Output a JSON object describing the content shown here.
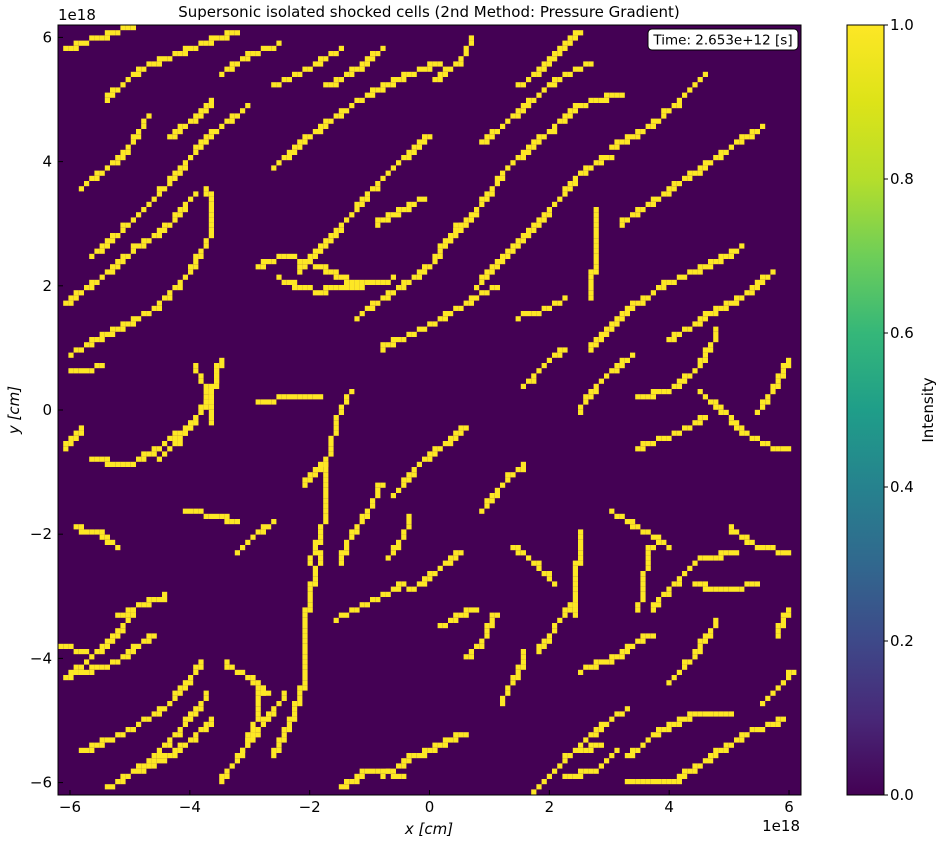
{
  "chart_data": {
    "type": "heatmap",
    "title": "Supersonic isolated shocked cells (2nd Method: Pressure Gradient)",
    "xlabel": "x [cm]",
    "ylabel": "y [cm]",
    "x_scale_label": "1e18",
    "y_scale_label": "1e18",
    "xlim": [
      -6.2,
      6.2
    ],
    "ylim": [
      -6.2,
      6.2
    ],
    "xticks": [
      -6,
      -4,
      -2,
      0,
      2,
      4,
      6
    ],
    "yticks": [
      -6,
      -4,
      -2,
      0,
      2,
      4,
      6
    ],
    "xtick_labels": [
      "−6",
      "−4",
      "−2",
      "0",
      "2",
      "4",
      "6"
    ],
    "ytick_labels": [
      "−6",
      "−4",
      "−2",
      "0",
      "2",
      "4",
      "6"
    ],
    "annotation": "Time: 2.653e+12 [s]",
    "annotation_placement": "top-right",
    "colorbar": {
      "label": "Intensity",
      "range": [
        0.0,
        1.0
      ],
      "ticks": [
        0.0,
        0.2,
        0.4,
        0.6,
        0.8,
        1.0
      ],
      "tick_labels": [
        "0.0",
        "0.2",
        "0.4",
        "0.6",
        "0.8",
        "1.0"
      ],
      "colormap": "viridis"
    },
    "grid": false,
    "values": [
      0,
      1
    ],
    "background_value": 0,
    "shock_value": 1,
    "shock_segments": [
      [
        [
          -6.1,
          -4.3
        ],
        [
          -5.3,
          -4.1
        ],
        [
          -4.6,
          -3.6
        ]
      ],
      [
        [
          -5.8,
          -5.5
        ],
        [
          -5.1,
          -5.2
        ],
        [
          -4.4,
          -4.8
        ],
        [
          -3.8,
          -4.1
        ]
      ],
      [
        [
          -5.4,
          -6.1
        ],
        [
          -4.7,
          -5.7
        ],
        [
          -4.2,
          -5.2
        ],
        [
          -3.7,
          -4.6
        ]
      ],
      [
        [
          -4.8,
          -5.8
        ],
        [
          -4.2,
          -5.5
        ],
        [
          -3.6,
          -5.0
        ]
      ],
      [
        [
          -3.5,
          -6.0
        ],
        [
          -2.9,
          -5.2
        ],
        [
          -2.4,
          -4.6
        ]
      ],
      [
        [
          -5.9,
          -4.2
        ],
        [
          -5.3,
          -3.7
        ],
        [
          -4.9,
          -3.2
        ]
      ],
      [
        [
          -5.2,
          -3.3
        ],
        [
          -4.7,
          -3.1
        ],
        [
          -4.4,
          -3.0
        ]
      ],
      [
        [
          -6.2,
          -3.8
        ],
        [
          -5.7,
          -3.9
        ]
      ],
      [
        [
          -6.0,
          0.9
        ],
        [
          -5.4,
          1.2
        ],
        [
          -4.6,
          1.6
        ],
        [
          -4.0,
          2.2
        ],
        [
          -3.6,
          2.9
        ],
        [
          -3.7,
          3.6
        ]
      ],
      [
        [
          -6.1,
          1.7
        ],
        [
          -5.5,
          2.1
        ],
        [
          -4.9,
          2.6
        ],
        [
          -4.3,
          3.0
        ],
        [
          -3.9,
          3.5
        ]
      ],
      [
        [
          -5.6,
          2.5
        ],
        [
          -4.9,
          3.1
        ],
        [
          -4.3,
          3.7
        ],
        [
          -3.7,
          4.4
        ],
        [
          -3.0,
          4.9
        ]
      ],
      [
        [
          -5.8,
          3.6
        ],
        [
          -5.1,
          4.1
        ],
        [
          -4.7,
          4.7
        ]
      ],
      [
        [
          -5.4,
          5.0
        ],
        [
          -4.8,
          5.5
        ],
        [
          -4.0,
          5.8
        ],
        [
          -3.2,
          6.1
        ]
      ],
      [
        [
          -6.1,
          5.8
        ],
        [
          -5.5,
          6.0
        ],
        [
          -4.9,
          6.2
        ]
      ],
      [
        [
          -2.6,
          3.9
        ],
        [
          -2.0,
          4.4
        ],
        [
          -1.3,
          4.9
        ],
        [
          -0.6,
          5.3
        ],
        [
          0.2,
          5.6
        ]
      ],
      [
        [
          -2.2,
          2.2
        ],
        [
          -1.6,
          2.8
        ],
        [
          -1.0,
          3.5
        ],
        [
          -0.5,
          4.0
        ],
        [
          0.0,
          4.4
        ]
      ],
      [
        [
          -2.9,
          2.3
        ],
        [
          -2.4,
          2.5
        ],
        [
          -1.8,
          2.3
        ],
        [
          -1.2,
          2.0
        ],
        [
          -0.6,
          2.1
        ]
      ],
      [
        [
          -2.5,
          2.1
        ],
        [
          -1.9,
          1.9
        ],
        [
          -1.3,
          2.0
        ]
      ],
      [
        [
          -1.2,
          1.5
        ],
        [
          -0.6,
          1.9
        ],
        [
          0.1,
          2.4
        ],
        [
          0.5,
          3.0
        ]
      ],
      [
        [
          -0.8,
          1.0
        ],
        [
          -0.1,
          1.3
        ],
        [
          0.6,
          1.7
        ],
        [
          1.1,
          2.0
        ]
      ],
      [
        [
          0.8,
          2.0
        ],
        [
          1.4,
          2.6
        ],
        [
          2.0,
          3.2
        ],
        [
          2.5,
          3.8
        ],
        [
          3.0,
          4.1
        ]
      ],
      [
        [
          0.2,
          2.6
        ],
        [
          0.8,
          3.2
        ],
        [
          1.3,
          3.9
        ],
        [
          1.9,
          4.4
        ],
        [
          2.5,
          4.9
        ],
        [
          3.2,
          5.1
        ]
      ],
      [
        [
          0.9,
          4.3
        ],
        [
          1.5,
          4.8
        ],
        [
          2.1,
          5.3
        ],
        [
          2.7,
          5.6
        ]
      ],
      [
        [
          0.1,
          5.3
        ],
        [
          0.6,
          5.7
        ],
        [
          0.7,
          6.0
        ]
      ],
      [
        [
          1.5,
          5.2
        ],
        [
          2.0,
          5.6
        ],
        [
          2.5,
          6.1
        ]
      ],
      [
        [
          3.0,
          4.2
        ],
        [
          3.6,
          4.5
        ],
        [
          4.1,
          4.9
        ],
        [
          4.6,
          5.4
        ]
      ],
      [
        [
          3.2,
          3.0
        ],
        [
          3.8,
          3.4
        ],
        [
          4.4,
          3.8
        ],
        [
          5.0,
          4.2
        ],
        [
          5.6,
          4.6
        ]
      ],
      [
        [
          2.7,
          1.0
        ],
        [
          3.3,
          1.6
        ],
        [
          3.9,
          2.0
        ],
        [
          4.6,
          2.3
        ],
        [
          5.2,
          2.6
        ]
      ],
      [
        [
          2.8,
          3.2
        ],
        [
          2.8,
          2.5
        ],
        [
          2.7,
          2.0
        ],
        [
          2.7,
          1.8
        ]
      ],
      [
        [
          4.0,
          1.1
        ],
        [
          4.6,
          1.5
        ],
        [
          5.2,
          1.8
        ],
        [
          5.7,
          2.2
        ]
      ],
      [
        [
          4.8,
          1.3
        ],
        [
          4.7,
          1.0
        ],
        [
          4.4,
          0.6
        ],
        [
          4.0,
          0.3
        ],
        [
          3.5,
          0.2
        ]
      ],
      [
        [
          4.5,
          0.3
        ],
        [
          4.9,
          0.0
        ],
        [
          5.3,
          -0.4
        ],
        [
          5.7,
          -0.6
        ],
        [
          6.0,
          -0.6
        ]
      ],
      [
        [
          2.5,
          0.0
        ],
        [
          2.9,
          0.5
        ],
        [
          3.4,
          0.9
        ]
      ],
      [
        [
          3.5,
          -0.6
        ],
        [
          4.1,
          -0.4
        ],
        [
          4.6,
          -0.1
        ]
      ],
      [
        [
          -5.6,
          -0.8
        ],
        [
          -5.0,
          -0.9
        ],
        [
          -4.5,
          -0.6
        ],
        [
          -3.9,
          -0.2
        ],
        [
          -3.6,
          0.4
        ],
        [
          -3.5,
          0.8
        ]
      ],
      [
        [
          -4.5,
          -0.8
        ],
        [
          -4.0,
          -0.3
        ],
        [
          -3.6,
          0.3
        ],
        [
          -3.5,
          0.7
        ]
      ],
      [
        [
          -3.9,
          0.7
        ],
        [
          -3.7,
          0.3
        ],
        [
          -3.6,
          -0.2
        ]
      ],
      [
        [
          -2.9,
          0.1
        ],
        [
          -2.4,
          0.2
        ],
        [
          -1.8,
          0.2
        ]
      ],
      [
        [
          -2.1,
          -1.2
        ],
        [
          -1.7,
          -0.8
        ],
        [
          -1.5,
          0.0
        ],
        [
          -1.3,
          0.3
        ]
      ],
      [
        [
          -2.0,
          -2.5
        ],
        [
          -1.8,
          -2.0
        ],
        [
          -1.7,
          -1.4
        ],
        [
          -1.7,
          -0.9
        ]
      ],
      [
        [
          -2.1,
          -4.3
        ],
        [
          -2.1,
          -3.6
        ],
        [
          -2.0,
          -3.0
        ],
        [
          -1.8,
          -2.3
        ]
      ],
      [
        [
          -1.5,
          -2.5
        ],
        [
          -1.3,
          -2.0
        ],
        [
          -1.0,
          -1.6
        ],
        [
          -0.8,
          -1.2
        ]
      ],
      [
        [
          -0.6,
          -1.4
        ],
        [
          -0.2,
          -0.9
        ],
        [
          0.2,
          -0.6
        ],
        [
          0.6,
          -0.3
        ]
      ],
      [
        [
          0.9,
          -1.6
        ],
        [
          1.3,
          -1.1
        ],
        [
          1.6,
          -0.9
        ]
      ],
      [
        [
          -1.6,
          -3.4
        ],
        [
          -1.0,
          -3.1
        ],
        [
          -0.4,
          -2.8
        ]
      ],
      [
        [
          -0.7,
          -2.4
        ],
        [
          -0.4,
          -2.0
        ],
        [
          -0.3,
          -1.7
        ]
      ],
      [
        [
          -0.3,
          -2.9
        ],
        [
          0.1,
          -2.6
        ],
        [
          0.5,
          -2.3
        ]
      ],
      [
        [
          1.8,
          -3.9
        ],
        [
          2.1,
          -3.5
        ],
        [
          2.4,
          -3.1
        ]
      ],
      [
        [
          2.4,
          -3.3
        ],
        [
          2.4,
          -2.8
        ],
        [
          2.5,
          -2.4
        ],
        [
          2.5,
          -2.0
        ]
      ],
      [
        [
          2.5,
          -4.2
        ],
        [
          3.1,
          -4.0
        ],
        [
          3.7,
          -3.6
        ]
      ],
      [
        [
          3.5,
          -3.2
        ],
        [
          3.6,
          -2.6
        ],
        [
          3.7,
          -2.2
        ]
      ],
      [
        [
          3.7,
          -3.2
        ],
        [
          4.1,
          -2.8
        ],
        [
          4.5,
          -2.4
        ],
        [
          5.1,
          -2.3
        ]
      ],
      [
        [
          4.4,
          -2.8
        ],
        [
          4.9,
          -2.9
        ],
        [
          5.5,
          -2.8
        ]
      ],
      [
        [
          5.0,
          -1.9
        ],
        [
          5.5,
          -2.2
        ],
        [
          6.0,
          -2.3
        ]
      ],
      [
        [
          3.0,
          -1.6
        ],
        [
          3.5,
          -1.9
        ],
        [
          4.0,
          -2.2
        ]
      ],
      [
        [
          4.0,
          -4.4
        ],
        [
          4.4,
          -4.0
        ],
        [
          4.8,
          -3.4
        ]
      ],
      [
        [
          4.2,
          -5.9
        ],
        [
          4.7,
          -5.6
        ],
        [
          5.3,
          -5.2
        ],
        [
          5.9,
          -5.0
        ]
      ],
      [
        [
          3.3,
          -5.6
        ],
        [
          3.8,
          -5.2
        ],
        [
          4.4,
          -4.9
        ],
        [
          5.0,
          -4.9
        ]
      ],
      [
        [
          1.7,
          -6.2
        ],
        [
          2.1,
          -5.8
        ],
        [
          2.4,
          -5.5
        ],
        [
          2.9,
          -5.4
        ]
      ],
      [
        [
          2.3,
          -5.9
        ],
        [
          2.8,
          -5.8
        ],
        [
          3.1,
          -5.5
        ]
      ],
      [
        [
          3.3,
          -6.0
        ],
        [
          3.8,
          -6.0
        ],
        [
          4.2,
          -6.0
        ]
      ],
      [
        [
          2.5,
          -5.4
        ],
        [
          2.9,
          -5.1
        ],
        [
          3.3,
          -4.8
        ]
      ],
      [
        [
          -0.8,
          -5.9
        ],
        [
          -0.3,
          -5.6
        ],
        [
          0.2,
          -5.4
        ],
        [
          0.6,
          -5.2
        ]
      ],
      [
        [
          -1.5,
          -6.1
        ],
        [
          -1.0,
          -5.8
        ],
        [
          -0.4,
          -5.9
        ]
      ],
      [
        [
          -2.6,
          -5.6
        ],
        [
          -2.3,
          -5.0
        ],
        [
          -2.1,
          -4.4
        ]
      ],
      [
        [
          -3.1,
          -5.5
        ],
        [
          -2.9,
          -5.0
        ],
        [
          -2.8,
          -4.5
        ]
      ],
      [
        [
          0.6,
          -4.0
        ],
        [
          0.9,
          -3.7
        ],
        [
          1.1,
          -3.3
        ]
      ],
      [
        [
          1.2,
          -4.7
        ],
        [
          1.5,
          -4.2
        ],
        [
          1.6,
          -3.9
        ]
      ],
      [
        [
          -5.9,
          -1.9
        ],
        [
          -5.5,
          -2.0
        ],
        [
          -5.2,
          -2.2
        ]
      ],
      [
        [
          -6.1,
          -0.6
        ],
        [
          -5.8,
          -0.3
        ]
      ],
      [
        [
          -6.0,
          0.6
        ],
        [
          -5.5,
          0.7
        ]
      ],
      [
        [
          5.5,
          0.0
        ],
        [
          5.8,
          0.4
        ],
        [
          6.0,
          0.8
        ]
      ],
      [
        [
          5.8,
          -3.6
        ],
        [
          6.0,
          -3.2
        ]
      ],
      [
        [
          5.6,
          -4.7
        ],
        [
          5.9,
          -4.4
        ],
        [
          6.1,
          -4.2
        ]
      ],
      [
        [
          -0.9,
          3.0
        ],
        [
          -0.5,
          3.2
        ],
        [
          -0.1,
          3.4
        ]
      ],
      [
        [
          -1.7,
          5.2
        ],
        [
          -1.2,
          5.5
        ],
        [
          -0.8,
          5.8
        ]
      ],
      [
        [
          -2.6,
          5.2
        ],
        [
          -2.0,
          5.5
        ],
        [
          -1.5,
          5.8
        ]
      ],
      [
        [
          -3.5,
          5.4
        ],
        [
          -3.0,
          5.7
        ],
        [
          -2.5,
          5.9
        ]
      ],
      [
        [
          -4.3,
          4.4
        ],
        [
          -3.9,
          4.7
        ],
        [
          -3.6,
          5.0
        ]
      ],
      [
        [
          1.6,
          0.4
        ],
        [
          2.0,
          0.8
        ],
        [
          2.3,
          1.0
        ]
      ],
      [
        [
          0.2,
          -3.5
        ],
        [
          0.5,
          -3.3
        ],
        [
          0.8,
          -3.2
        ]
      ],
      [
        [
          -3.2,
          -2.3
        ],
        [
          -2.9,
          -2.0
        ],
        [
          -2.6,
          -1.8
        ]
      ],
      [
        [
          -4.1,
          -1.6
        ],
        [
          -3.6,
          -1.7
        ],
        [
          -3.2,
          -1.8
        ]
      ],
      [
        [
          1.4,
          -2.2
        ],
        [
          1.8,
          -2.5
        ],
        [
          2.1,
          -2.8
        ]
      ],
      [
        [
          1.5,
          1.5
        ],
        [
          1.9,
          1.6
        ],
        [
          2.3,
          1.8
        ]
      ],
      [
        [
          -3.4,
          -4.1
        ],
        [
          -3.0,
          -4.3
        ],
        [
          -2.7,
          -4.6
        ]
      ]
    ]
  }
}
